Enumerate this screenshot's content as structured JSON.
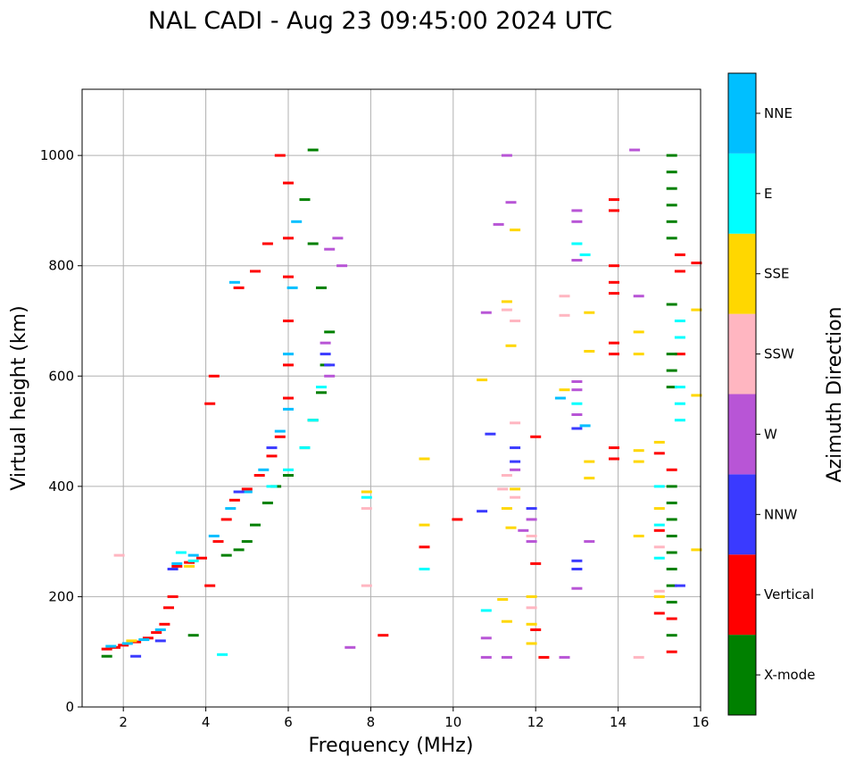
{
  "chart_data": {
    "type": "scatter",
    "title": "NAL CADI - Aug 23 09:45:00 2024 UTC",
    "xlabel": "Frequency (MHz)",
    "ylabel": "Virtual height (km)",
    "xlim": [
      1,
      16
    ],
    "ylim": [
      0,
      1120
    ],
    "xticks": [
      2,
      4,
      6,
      8,
      10,
      12,
      14,
      16
    ],
    "yticks": [
      0,
      200,
      400,
      600,
      800,
      1000
    ],
    "grid": true,
    "colorbar": {
      "label": "Azimuth Direction",
      "categories": [
        {
          "name": "X-mode",
          "color": "#008000"
        },
        {
          "name": "Vertical",
          "color": "#ff0000"
        },
        {
          "name": "NNW",
          "color": "#3a3aff"
        },
        {
          "name": "W",
          "color": "#b855d6"
        },
        {
          "name": "SSW",
          "color": "#ffb6c1"
        },
        {
          "name": "SSE",
          "color": "#ffd700"
        },
        {
          "name": "E",
          "color": "#00ffff"
        },
        {
          "name": "NNE",
          "color": "#00bfff"
        }
      ]
    },
    "series": [
      {
        "name": "Vertical",
        "points": [
          [
            1.6,
            105
          ],
          [
            1.8,
            108
          ],
          [
            2.0,
            112
          ],
          [
            2.3,
            118
          ],
          [
            2.6,
            125
          ],
          [
            2.8,
            135
          ],
          [
            3.0,
            150
          ],
          [
            3.1,
            180
          ],
          [
            3.3,
            255
          ],
          [
            3.6,
            262
          ],
          [
            3.9,
            270
          ],
          [
            4.3,
            300
          ],
          [
            4.5,
            340
          ],
          [
            4.7,
            375
          ],
          [
            5.0,
            395
          ],
          [
            5.3,
            420
          ],
          [
            5.6,
            455
          ],
          [
            5.8,
            490
          ],
          [
            6.0,
            560
          ],
          [
            6.0,
            620
          ],
          [
            6.0,
            700
          ],
          [
            6.0,
            780
          ],
          [
            6.0,
            850
          ],
          [
            6.0,
            950
          ],
          [
            5.8,
            1000
          ],
          [
            5.5,
            840
          ],
          [
            5.2,
            790
          ],
          [
            4.8,
            760
          ],
          [
            4.2,
            600
          ],
          [
            4.1,
            550
          ],
          [
            4.1,
            220
          ],
          [
            3.2,
            200
          ],
          [
            12.0,
            490
          ],
          [
            12.0,
            260
          ],
          [
            12.0,
            140
          ],
          [
            13.9,
            920
          ],
          [
            13.9,
            900
          ],
          [
            13.9,
            800
          ],
          [
            13.9,
            770
          ],
          [
            13.9,
            750
          ],
          [
            13.9,
            660
          ],
          [
            13.9,
            640
          ],
          [
            13.9,
            470
          ],
          [
            13.9,
            450
          ],
          [
            15.0,
            460
          ],
          [
            15.0,
            320
          ],
          [
            15.0,
            170
          ],
          [
            15.3,
            430
          ],
          [
            15.3,
            160
          ],
          [
            15.3,
            100
          ],
          [
            15.5,
            820
          ],
          [
            15.5,
            640
          ],
          [
            15.5,
            790
          ],
          [
            15.9,
            805
          ],
          [
            10.1,
            340
          ],
          [
            9.3,
            290
          ],
          [
            8.3,
            130
          ],
          [
            12.2,
            90
          ]
        ]
      },
      {
        "name": "X-mode",
        "points": [
          [
            4.5,
            275
          ],
          [
            4.8,
            285
          ],
          [
            5.0,
            300
          ],
          [
            5.2,
            330
          ],
          [
            5.5,
            370
          ],
          [
            5.7,
            400
          ],
          [
            6.0,
            420
          ],
          [
            6.4,
            470
          ],
          [
            6.6,
            520
          ],
          [
            6.8,
            570
          ],
          [
            6.9,
            620
          ],
          [
            7.0,
            680
          ],
          [
            6.8,
            760
          ],
          [
            6.6,
            840
          ],
          [
            6.4,
            920
          ],
          [
            6.6,
            1010
          ],
          [
            3.7,
            130
          ],
          [
            15.3,
            1000
          ],
          [
            15.3,
            970
          ],
          [
            15.3,
            940
          ],
          [
            15.3,
            910
          ],
          [
            15.3,
            880
          ],
          [
            15.3,
            850
          ],
          [
            15.3,
            730
          ],
          [
            15.3,
            640
          ],
          [
            15.3,
            610
          ],
          [
            15.3,
            580
          ],
          [
            15.3,
            400
          ],
          [
            15.3,
            370
          ],
          [
            15.3,
            340
          ],
          [
            15.3,
            310
          ],
          [
            15.3,
            280
          ],
          [
            15.3,
            250
          ],
          [
            15.3,
            220
          ],
          [
            15.3,
            190
          ],
          [
            15.3,
            130
          ],
          [
            1.6,
            92
          ]
        ]
      },
      {
        "name": "NNE",
        "points": [
          [
            1.7,
            110
          ],
          [
            2.1,
            115
          ],
          [
            2.5,
            122
          ],
          [
            2.9,
            140
          ],
          [
            3.3,
            260
          ],
          [
            3.7,
            275
          ],
          [
            4.2,
            310
          ],
          [
            4.6,
            360
          ],
          [
            5.0,
            390
          ],
          [
            5.4,
            430
          ],
          [
            5.8,
            500
          ],
          [
            6.0,
            540
          ],
          [
            6.0,
            640
          ],
          [
            6.1,
            760
          ],
          [
            6.2,
            880
          ],
          [
            4.7,
            770
          ],
          [
            13.2,
            510
          ],
          [
            12.6,
            560
          ]
        ]
      },
      {
        "name": "E",
        "points": [
          [
            5.6,
            400
          ],
          [
            6.0,
            430
          ],
          [
            6.4,
            470
          ],
          [
            6.6,
            520
          ],
          [
            6.8,
            580
          ],
          [
            3.4,
            280
          ],
          [
            3.7,
            265
          ],
          [
            4.4,
            95
          ],
          [
            9.3,
            250
          ],
          [
            10.8,
            175
          ],
          [
            13.0,
            550
          ],
          [
            13.0,
            840
          ],
          [
            13.2,
            820
          ],
          [
            15.0,
            270
          ],
          [
            15.0,
            330
          ],
          [
            15.0,
            400
          ],
          [
            15.5,
            520
          ],
          [
            15.5,
            550
          ],
          [
            15.5,
            580
          ],
          [
            15.5,
            670
          ],
          [
            15.5,
            700
          ],
          [
            7.9,
            380
          ]
        ]
      },
      {
        "name": "NNW",
        "points": [
          [
            2.3,
            92
          ],
          [
            2.9,
            120
          ],
          [
            3.2,
            250
          ],
          [
            4.8,
            390
          ],
          [
            5.6,
            470
          ],
          [
            6.9,
            640
          ],
          [
            7.0,
            620
          ],
          [
            10.7,
            355
          ],
          [
            10.9,
            495
          ],
          [
            13.0,
            505
          ],
          [
            13.0,
            265
          ],
          [
            13.0,
            250
          ],
          [
            11.9,
            360
          ],
          [
            15.5,
            220
          ],
          [
            11.5,
            445
          ],
          [
            11.5,
            470
          ]
        ]
      },
      {
        "name": "W",
        "points": [
          [
            6.9,
            660
          ],
          [
            7.0,
            600
          ],
          [
            7.2,
            850
          ],
          [
            7.0,
            830
          ],
          [
            7.3,
            800
          ],
          [
            7.5,
            108
          ],
          [
            10.8,
            715
          ],
          [
            10.8,
            125
          ],
          [
            10.8,
            90
          ],
          [
            11.3,
            90
          ],
          [
            11.5,
            430
          ],
          [
            11.7,
            320
          ],
          [
            11.9,
            340
          ],
          [
            11.9,
            300
          ],
          [
            12.7,
            90
          ],
          [
            13.0,
            900
          ],
          [
            13.0,
            880
          ],
          [
            13.0,
            810
          ],
          [
            13.0,
            590
          ],
          [
            13.0,
            575
          ],
          [
            13.0,
            530
          ],
          [
            13.3,
            300
          ],
          [
            13.0,
            215
          ],
          [
            11.4,
            915
          ],
          [
            11.1,
            875
          ],
          [
            14.4,
            1010
          ],
          [
            14.5,
            745
          ],
          [
            11.3,
            1000
          ]
        ]
      },
      {
        "name": "SSW",
        "points": [
          [
            1.9,
            275
          ],
          [
            7.9,
            360
          ],
          [
            7.9,
            220
          ],
          [
            11.3,
            720
          ],
          [
            11.5,
            700
          ],
          [
            11.5,
            515
          ],
          [
            11.3,
            420
          ],
          [
            12.7,
            745
          ],
          [
            12.7,
            710
          ],
          [
            11.9,
            310
          ],
          [
            11.9,
            180
          ],
          [
            14.5,
            90
          ],
          [
            15.0,
            210
          ],
          [
            15.0,
            290
          ],
          [
            11.2,
            395
          ],
          [
            11.5,
            380
          ]
        ]
      },
      {
        "name": "SSE",
        "points": [
          [
            2.2,
            120
          ],
          [
            3.6,
            255
          ],
          [
            7.9,
            390
          ],
          [
            9.3,
            450
          ],
          [
            9.3,
            330
          ],
          [
            10.7,
            593
          ],
          [
            11.3,
            735
          ],
          [
            11.4,
            655
          ],
          [
            11.3,
            360
          ],
          [
            11.4,
            325
          ],
          [
            11.5,
            395
          ],
          [
            11.2,
            195
          ],
          [
            11.3,
            155
          ],
          [
            11.9,
            200
          ],
          [
            11.9,
            150
          ],
          [
            11.9,
            115
          ],
          [
            12.7,
            575
          ],
          [
            13.3,
            715
          ],
          [
            13.3,
            645
          ],
          [
            13.3,
            445
          ],
          [
            13.3,
            415
          ],
          [
            14.5,
            465
          ],
          [
            14.5,
            445
          ],
          [
            14.5,
            310
          ],
          [
            14.5,
            640
          ],
          [
            14.5,
            680
          ],
          [
            15.0,
            480
          ],
          [
            15.0,
            360
          ],
          [
            15.0,
            200
          ],
          [
            15.9,
            720
          ],
          [
            15.9,
            565
          ],
          [
            15.9,
            285
          ],
          [
            11.5,
            865
          ]
        ]
      }
    ]
  }
}
